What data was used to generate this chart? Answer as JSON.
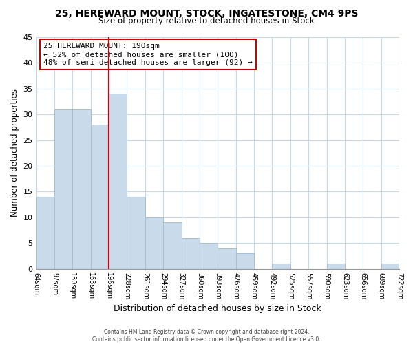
{
  "title": "25, HEREWARD MOUNT, STOCK, INGATESTONE, CM4 9PS",
  "subtitle": "Size of property relative to detached houses in Stock",
  "xlabel": "Distribution of detached houses by size in Stock",
  "ylabel": "Number of detached properties",
  "bar_color": "#c9daea",
  "bar_edge_color": "#a8c0d4",
  "bin_labels": [
    "64sqm",
    "97sqm",
    "130sqm",
    "163sqm",
    "196sqm",
    "228sqm",
    "261sqm",
    "294sqm",
    "327sqm",
    "360sqm",
    "393sqm",
    "426sqm",
    "459sqm",
    "492sqm",
    "525sqm",
    "557sqm",
    "590sqm",
    "623sqm",
    "656sqm",
    "689sqm",
    "722sqm"
  ],
  "values": [
    14,
    31,
    31,
    28,
    34,
    14,
    10,
    9,
    6,
    5,
    4,
    3,
    0,
    1,
    0,
    0,
    1,
    0,
    0,
    1
  ],
  "vline_bin_index": 4,
  "vline_color": "#cc0000",
  "ann_line1": "25 HEREWARD MOUNT: 190sqm",
  "ann_line2": "← 52% of detached houses are smaller (100)",
  "ann_line3": "48% of semi-detached houses are larger (92) →",
  "annotation_box_color": "#ffffff",
  "annotation_box_edge": "#cc0000",
  "ylim": [
    0,
    45
  ],
  "yticks": [
    0,
    5,
    10,
    15,
    20,
    25,
    30,
    35,
    40,
    45
  ],
  "footer_line1": "Contains HM Land Registry data © Crown copyright and database right 2024.",
  "footer_line2": "Contains public sector information licensed under the Open Government Licence v3.0.",
  "background_color": "#ffffff",
  "grid_color": "#c8d8e8"
}
